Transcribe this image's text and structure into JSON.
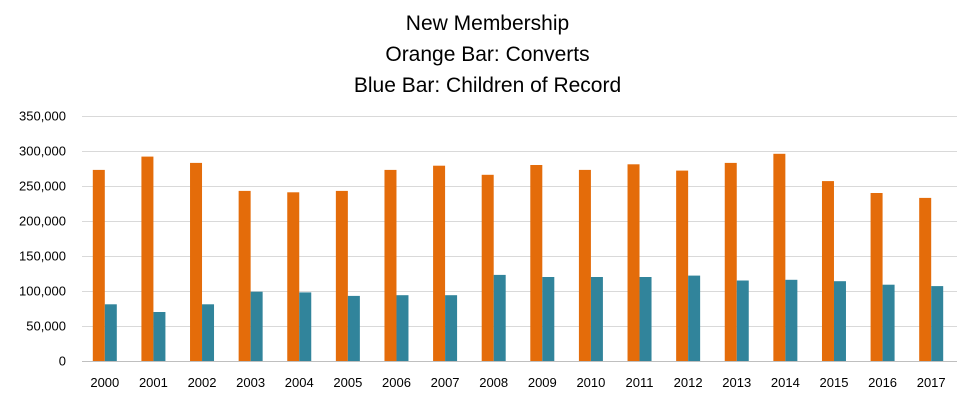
{
  "chart_data": {
    "type": "bar",
    "title": "New Membership",
    "subtitle_lines": [
      "Orange Bar: Converts",
      "Blue Bar: Children of Record"
    ],
    "xlabel": "",
    "ylabel": "",
    "ylim": [
      0,
      350000
    ],
    "yticks": [
      0,
      50000,
      100000,
      150000,
      200000,
      250000,
      300000,
      350000
    ],
    "ytick_labels": [
      "0",
      "50,000",
      "100,000",
      "150,000",
      "200,000",
      "250,000",
      "300,000",
      "350,000"
    ],
    "grid": true,
    "categories": [
      "2000",
      "2001",
      "2002",
      "2003",
      "2004",
      "2005",
      "2006",
      "2007",
      "2008",
      "2009",
      "2010",
      "2011",
      "2012",
      "2013",
      "2014",
      "2015",
      "2016",
      "2017"
    ],
    "series": [
      {
        "color": "#E46C0A",
        "values": [
          273000,
          292000,
          283000,
          243000,
          241000,
          243000,
          273000,
          279000,
          266000,
          280000,
          273000,
          281000,
          272000,
          283000,
          296000,
          257000,
          240000,
          233000
        ]
      },
      {
        "color": "#31849B",
        "values": [
          81000,
          70000,
          81000,
          99000,
          98000,
          93000,
          94000,
          94000,
          123000,
          120000,
          120000,
          120000,
          122000,
          115000,
          116000,
          114000,
          109000,
          107000
        ]
      }
    ]
  }
}
